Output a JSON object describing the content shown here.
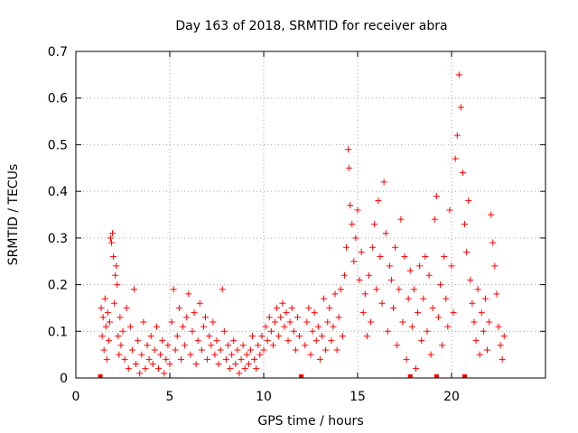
{
  "chart_data": {
    "type": "scatter",
    "title": "Day 163 of 2018, SRMTID for receiver abra",
    "xlabel": "GPS time / hours",
    "ylabel": "SRMTID / TECUs",
    "xlim": [
      0,
      25
    ],
    "ylim": [
      0,
      0.7
    ],
    "x_ticks": [
      0,
      5,
      10,
      15,
      20
    ],
    "x_tick_labels": [
      "0",
      "5",
      "10",
      "15",
      "20"
    ],
    "y_ticks": [
      0,
      0.1,
      0.2,
      0.3,
      0.4,
      0.5,
      0.6,
      0.7
    ],
    "y_tick_labels": [
      "0",
      "0.1",
      "0.2",
      "0.3",
      "0.4",
      "0.5",
      "0.6",
      "0.7"
    ],
    "grid": true,
    "marker": "plus",
    "color": "#ff0000",
    "series": [
      {
        "name": "SRMTID",
        "points": [
          [
            1.35,
            0.15
          ],
          [
            1.4,
            0.09
          ],
          [
            1.45,
            0.13
          ],
          [
            1.5,
            0.06
          ],
          [
            1.55,
            0.17
          ],
          [
            1.6,
            0.11
          ],
          [
            1.65,
            0.04
          ],
          [
            1.7,
            0.14
          ],
          [
            1.75,
            0.08
          ],
          [
            1.8,
            0.12
          ],
          [
            1.85,
            0.3
          ],
          [
            1.9,
            0.29
          ],
          [
            1.95,
            0.31
          ],
          [
            2.0,
            0.26
          ],
          [
            2.05,
            0.16
          ],
          [
            2.1,
            0.22
          ],
          [
            2.15,
            0.24
          ],
          [
            2.2,
            0.2
          ],
          [
            2.25,
            0.09
          ],
          [
            2.3,
            0.05
          ],
          [
            2.35,
            0.13
          ],
          [
            2.4,
            0.07
          ],
          [
            2.5,
            0.1
          ],
          [
            2.6,
            0.04
          ],
          [
            2.7,
            0.15
          ],
          [
            2.8,
            0.02
          ],
          [
            2.9,
            0.11
          ],
          [
            3.0,
            0.06
          ],
          [
            3.1,
            0.19
          ],
          [
            3.2,
            0.03
          ],
          [
            3.3,
            0.08
          ],
          [
            3.4,
            0.01
          ],
          [
            3.5,
            0.05
          ],
          [
            3.6,
            0.12
          ],
          [
            3.7,
            0.02
          ],
          [
            3.8,
            0.07
          ],
          [
            3.9,
            0.04
          ],
          [
            4.0,
            0.09
          ],
          [
            4.1,
            0.03
          ],
          [
            4.2,
            0.06
          ],
          [
            4.3,
            0.11
          ],
          [
            4.4,
            0.02
          ],
          [
            4.5,
            0.05
          ],
          [
            4.6,
            0.08
          ],
          [
            4.7,
            0.01
          ],
          [
            4.8,
            0.04
          ],
          [
            4.9,
            0.07
          ],
          [
            5.0,
            0.03
          ],
          [
            5.1,
            0.12
          ],
          [
            5.2,
            0.19
          ],
          [
            5.3,
            0.06
          ],
          [
            5.4,
            0.09
          ],
          [
            5.5,
            0.15
          ],
          [
            5.6,
            0.04
          ],
          [
            5.7,
            0.11
          ],
          [
            5.8,
            0.07
          ],
          [
            5.9,
            0.13
          ],
          [
            6.0,
            0.18
          ],
          [
            6.1,
            0.05
          ],
          [
            6.2,
            0.1
          ],
          [
            6.3,
            0.14
          ],
          [
            6.4,
            0.03
          ],
          [
            6.5,
            0.08
          ],
          [
            6.6,
            0.16
          ],
          [
            6.7,
            0.06
          ],
          [
            6.8,
            0.11
          ],
          [
            6.9,
            0.13
          ],
          [
            7.0,
            0.04
          ],
          [
            7.1,
            0.09
          ],
          [
            7.2,
            0.07
          ],
          [
            7.3,
            0.12
          ],
          [
            7.4,
            0.05
          ],
          [
            7.5,
            0.08
          ],
          [
            7.6,
            0.03
          ],
          [
            7.7,
            0.06
          ],
          [
            7.8,
            0.19
          ],
          [
            7.9,
            0.1
          ],
          [
            8.0,
            0.04
          ],
          [
            8.1,
            0.07
          ],
          [
            8.2,
            0.02
          ],
          [
            8.3,
            0.05
          ],
          [
            8.4,
            0.08
          ],
          [
            8.5,
            0.03
          ],
          [
            8.6,
            0.06
          ],
          [
            8.7,
            0.01
          ],
          [
            8.8,
            0.04
          ],
          [
            8.9,
            0.07
          ],
          [
            9.0,
            0.02
          ],
          [
            9.1,
            0.05
          ],
          [
            9.2,
            0.03
          ],
          [
            9.3,
            0.06
          ],
          [
            9.4,
            0.09
          ],
          [
            9.5,
            0.04
          ],
          [
            9.6,
            0.02
          ],
          [
            9.7,
            0.07
          ],
          [
            9.8,
            0.05
          ],
          [
            9.9,
            0.09
          ],
          [
            10.0,
            0.06
          ],
          [
            10.1,
            0.11
          ],
          [
            10.2,
            0.08
          ],
          [
            10.3,
            0.13
          ],
          [
            10.4,
            0.1
          ],
          [
            10.5,
            0.07
          ],
          [
            10.6,
            0.12
          ],
          [
            10.7,
            0.15
          ],
          [
            10.8,
            0.09
          ],
          [
            10.9,
            0.13
          ],
          [
            11.0,
            0.16
          ],
          [
            11.1,
            0.11
          ],
          [
            11.2,
            0.14
          ],
          [
            11.3,
            0.08
          ],
          [
            11.4,
            0.12
          ],
          [
            11.5,
            0.15
          ],
          [
            11.6,
            0.1
          ],
          [
            11.7,
            0.06
          ],
          [
            11.8,
            0.13
          ],
          [
            11.9,
            0.09
          ],
          [
            12.2,
            0.07
          ],
          [
            12.3,
            0.12
          ],
          [
            12.4,
            0.15
          ],
          [
            12.5,
            0.05
          ],
          [
            12.6,
            0.1
          ],
          [
            12.7,
            0.14
          ],
          [
            12.8,
            0.08
          ],
          [
            12.9,
            0.11
          ],
          [
            13.0,
            0.04
          ],
          [
            13.1,
            0.09
          ],
          [
            13.2,
            0.17
          ],
          [
            13.3,
            0.06
          ],
          [
            13.4,
            0.12
          ],
          [
            13.5,
            0.15
          ],
          [
            13.6,
            0.08
          ],
          [
            13.7,
            0.11
          ],
          [
            13.8,
            0.18
          ],
          [
            13.9,
            0.06
          ],
          [
            14.0,
            0.13
          ],
          [
            14.1,
            0.19
          ],
          [
            14.2,
            0.09
          ],
          [
            14.3,
            0.22
          ],
          [
            14.4,
            0.28
          ],
          [
            14.5,
            0.49
          ],
          [
            14.55,
            0.45
          ],
          [
            14.6,
            0.37
          ],
          [
            14.7,
            0.33
          ],
          [
            14.8,
            0.25
          ],
          [
            14.9,
            0.3
          ],
          [
            15.0,
            0.36
          ],
          [
            15.1,
            0.21
          ],
          [
            15.2,
            0.27
          ],
          [
            15.3,
            0.14
          ],
          [
            15.4,
            0.18
          ],
          [
            15.5,
            0.09
          ],
          [
            15.6,
            0.22
          ],
          [
            15.7,
            0.12
          ],
          [
            15.8,
            0.28
          ],
          [
            15.9,
            0.33
          ],
          [
            16.0,
            0.19
          ],
          [
            16.1,
            0.38
          ],
          [
            16.2,
            0.26
          ],
          [
            16.3,
            0.16
          ],
          [
            16.4,
            0.42
          ],
          [
            16.5,
            0.31
          ],
          [
            16.6,
            0.1
          ],
          [
            16.7,
            0.24
          ],
          [
            16.8,
            0.21
          ],
          [
            16.9,
            0.15
          ],
          [
            17.0,
            0.28
          ],
          [
            17.1,
            0.07
          ],
          [
            17.2,
            0.19
          ],
          [
            17.3,
            0.34
          ],
          [
            17.4,
            0.12
          ],
          [
            17.5,
            0.26
          ],
          [
            17.6,
            0.04
          ],
          [
            17.7,
            0.17
          ],
          [
            17.8,
            0.23
          ],
          [
            17.9,
            0.11
          ],
          [
            18.0,
            0.19
          ],
          [
            18.1,
            0.02
          ],
          [
            18.2,
            0.14
          ],
          [
            18.3,
            0.24
          ],
          [
            18.4,
            0.08
          ],
          [
            18.5,
            0.17
          ],
          [
            18.6,
            0.26
          ],
          [
            18.7,
            0.1
          ],
          [
            18.8,
            0.22
          ],
          [
            18.9,
            0.05
          ],
          [
            19.0,
            0.15
          ],
          [
            19.1,
            0.34
          ],
          [
            19.2,
            0.39
          ],
          [
            19.3,
            0.13
          ],
          [
            19.4,
            0.2
          ],
          [
            19.5,
            0.07
          ],
          [
            19.6,
            0.26
          ],
          [
            19.7,
            0.17
          ],
          [
            19.8,
            0.11
          ],
          [
            19.9,
            0.36
          ],
          [
            20.0,
            0.24
          ],
          [
            20.1,
            0.14
          ],
          [
            20.2,
            0.47
          ],
          [
            20.3,
            0.52
          ],
          [
            20.4,
            0.65
          ],
          [
            20.5,
            0.58
          ],
          [
            20.6,
            0.44
          ],
          [
            20.7,
            0.33
          ],
          [
            20.8,
            0.27
          ],
          [
            20.9,
            0.38
          ],
          [
            21.0,
            0.21
          ],
          [
            21.1,
            0.16
          ],
          [
            21.2,
            0.12
          ],
          [
            21.3,
            0.08
          ],
          [
            21.4,
            0.19
          ],
          [
            21.5,
            0.05
          ],
          [
            21.6,
            0.14
          ],
          [
            21.7,
            0.1
          ],
          [
            21.8,
            0.17
          ],
          [
            21.9,
            0.06
          ],
          [
            22.0,
            0.12
          ],
          [
            22.1,
            0.35
          ],
          [
            22.2,
            0.29
          ],
          [
            22.3,
            0.24
          ],
          [
            22.4,
            0.18
          ],
          [
            22.5,
            0.11
          ],
          [
            22.6,
            0.07
          ],
          [
            22.7,
            0.04
          ],
          [
            22.8,
            0.09
          ]
        ]
      }
    ],
    "gap_markers_x": [
      1.3,
      12.0,
      17.8,
      19.2,
      20.7
    ]
  }
}
